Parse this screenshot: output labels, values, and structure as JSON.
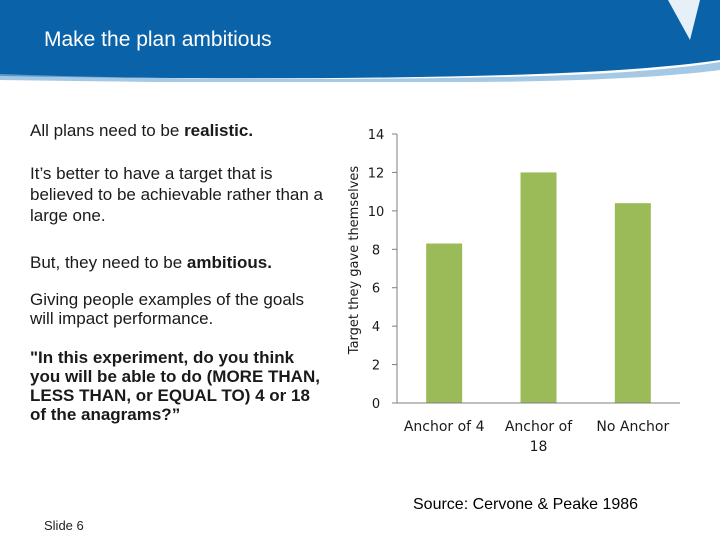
{
  "header": {
    "title": "Make the plan ambitious",
    "color": "#0a63a8"
  },
  "body_text": {
    "p1_plain": "All plans need to be ",
    "p1_bold": "realistic.",
    "p2": "It’s better to have a target that is believed to be achievable rather than a large one.",
    "p3_plain": "But, they need to be ",
    "p3_bold": "ambitious.",
    "p4": "Giving people examples of the goals will impact performance.",
    "p5": "\"In this experiment, do you think you will be able to do (MORE THAN, LESS THAN, or EQUAL TO) 4 or 18 of the anagrams?”"
  },
  "chart_data": {
    "type": "bar",
    "title": "",
    "xlabel": "",
    "ylabel": "Target they gave themselves",
    "categories": [
      "Anchor of 4",
      "Anchor of 18",
      "No Anchor"
    ],
    "category_lines": [
      [
        "Anchor of 4"
      ],
      [
        "Anchor of",
        "18"
      ],
      [
        "No Anchor"
      ]
    ],
    "values": [
      8.3,
      12.0,
      10.4
    ],
    "ylim": [
      0,
      14
    ],
    "yticks": [
      "0",
      "2",
      "4",
      "6",
      "8",
      "10",
      "12",
      "14"
    ],
    "grid": false,
    "bar_color": "#9bbb59"
  },
  "footer": {
    "source": "Source: Cervone & Peake 1986",
    "slide": "Slide 6"
  }
}
